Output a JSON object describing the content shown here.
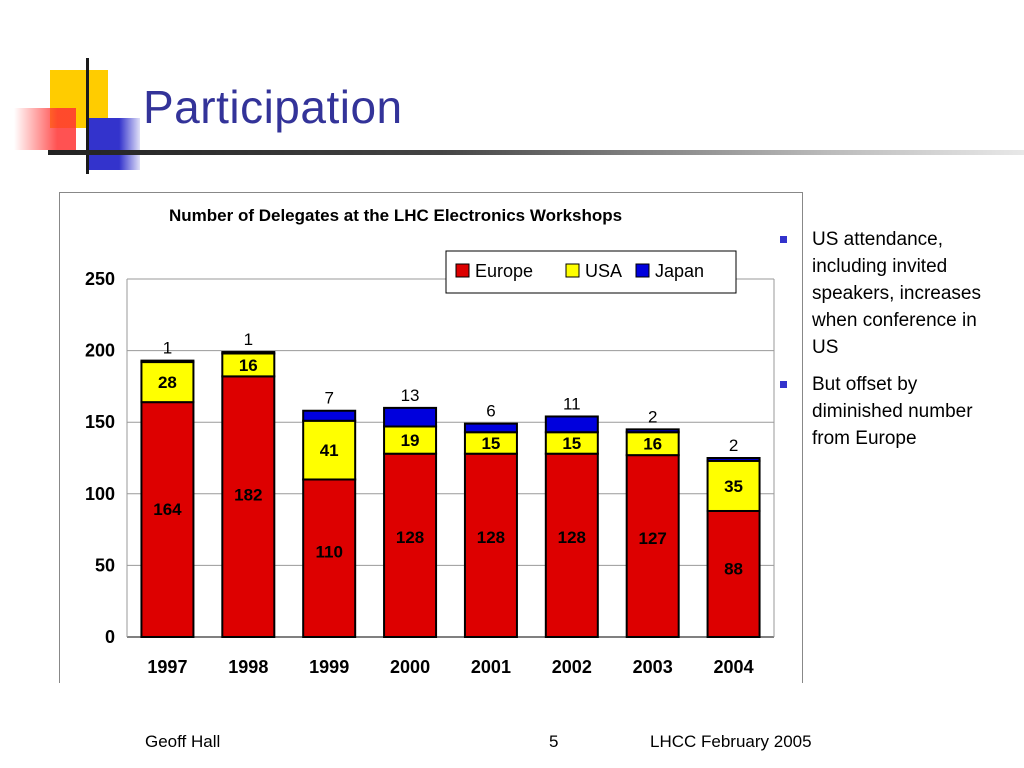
{
  "slide": {
    "title": "Participation",
    "bullets": [
      "US attendance, including invited speakers, increases when conference in US",
      "But offset by diminished number from Europe"
    ],
    "footer": {
      "left": "Geoff Hall",
      "page": "5",
      "right": "LHCC February 2005"
    }
  },
  "colors": {
    "title": "#333399",
    "europe": "#dd0000",
    "usa": "#ffff00",
    "japan": "#0000dd",
    "bullet": "#3333cc"
  },
  "chart_data": {
    "type": "bar",
    "stacked": true,
    "title": "Number of Delegates at the LHC Electronics Workshops",
    "categories": [
      "1997",
      "1998",
      "1999",
      "2000",
      "2001",
      "2002",
      "2003",
      "2004"
    ],
    "series": [
      {
        "name": "Europe",
        "values": [
          164,
          182,
          110,
          128,
          128,
          128,
          127,
          88
        ]
      },
      {
        "name": "USA",
        "values": [
          28,
          16,
          41,
          19,
          15,
          15,
          16,
          35
        ]
      },
      {
        "name": "Japan",
        "values": [
          1,
          1,
          7,
          13,
          6,
          11,
          2,
          2
        ]
      }
    ],
    "ylim": [
      0,
      250
    ],
    "yticks": [
      "0",
      "50",
      "100",
      "150",
      "200",
      "250"
    ],
    "grid": true,
    "legend": "top-right"
  }
}
